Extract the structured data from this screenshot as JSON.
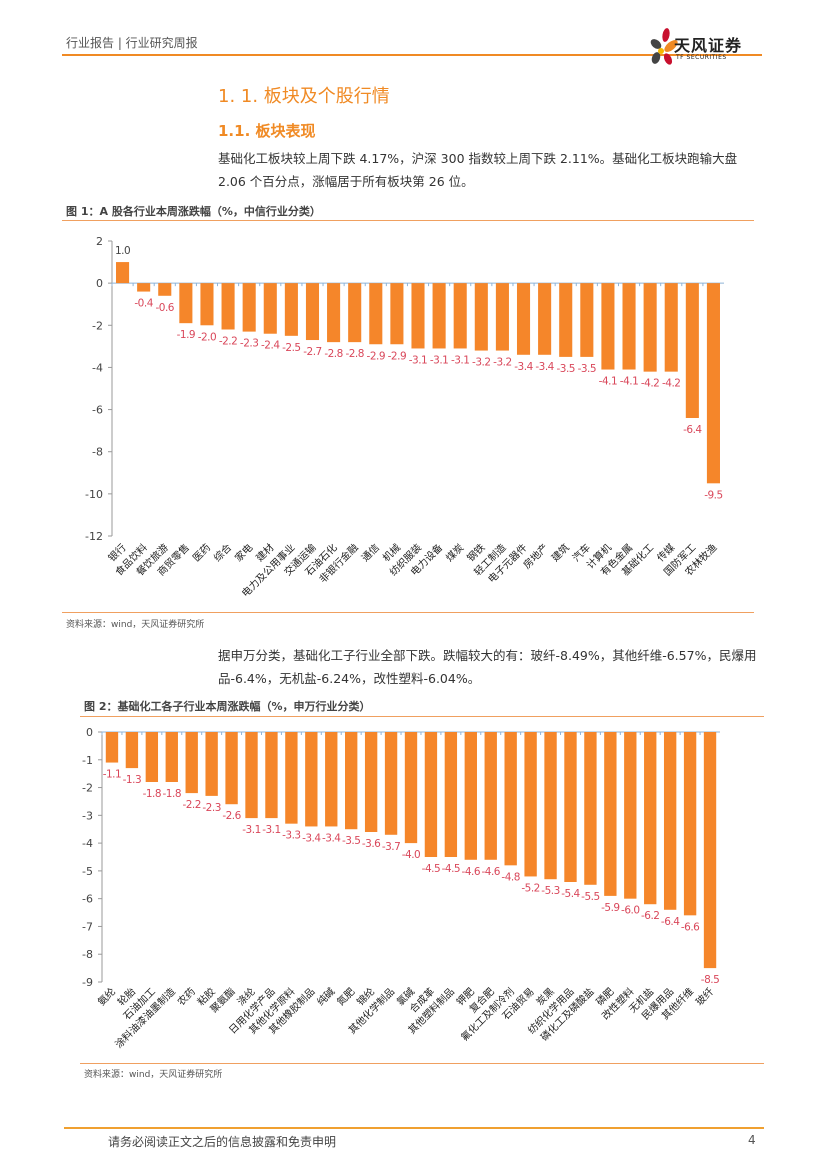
{
  "header": {
    "breadcrumb": "行业报告 | 行业研究周报",
    "logo_cn": "天风证券",
    "logo_en": "TF SECURITIES"
  },
  "section": {
    "h1": "1. 1.  板块及个股行情",
    "h2": "1.1. 板块表现",
    "para1": "基础化工板块较上周下跌 4.17%，沪深 300 指数较上周下跌 2.11%。基础化工板块跑输大盘 2.06 个百分点，涨幅居于所有板块第 26 位。",
    "para2": "据申万分类，基础化工子行业全部下跌。跌幅较大的有：玻纤-8.49%，其他纤维-6.57%，民爆用品-6.4%，无机盐-6.24%，改性塑料-6.04%。"
  },
  "figure1": {
    "title": "图 1：A 股各行业本周涨跌幅（%，中信行业分类）",
    "source": "资料来源：wind，天风证券研究所"
  },
  "figure2": {
    "title": "图 2：基础化工各子行业本周涨跌幅（%，申万行业分类）",
    "source": "资料来源：wind，天风证券研究所"
  },
  "footer": {
    "disclaimer": "请务必阅读正文之后的信息披露和免责申明",
    "page": "4"
  },
  "colors": {
    "accent": "#f08a24",
    "bar": "#f5862a",
    "label": "#d9475a"
  },
  "chart_data": [
    {
      "type": "bar",
      "title": "图 1：A 股各行业本周涨跌幅（%，中信行业分类）",
      "xlabel": "",
      "ylabel": "",
      "ylim": [
        -12,
        2
      ],
      "yticks": [
        2,
        0,
        -2,
        -4,
        -6,
        -8,
        -10,
        -12
      ],
      "grid": false,
      "categories": [
        "银行",
        "食品饮料",
        "餐饮旅游",
        "商贸零售",
        "医药",
        "综合",
        "家电",
        "建材",
        "电力及公用事业",
        "交通运输",
        "石油石化",
        "非银行金融",
        "通信",
        "机械",
        "纺织服装",
        "电力设备",
        "煤炭",
        "钢铁",
        "轻工制造",
        "电子元器件",
        "房地产",
        "建筑",
        "汽车",
        "计算机",
        "有色金属",
        "基础化工",
        "传媒",
        "国防军工",
        "农林牧渔"
      ],
      "values": [
        1.0,
        -0.4,
        -0.6,
        -1.9,
        -2.0,
        -2.2,
        -2.3,
        -2.4,
        -2.5,
        -2.7,
        -2.8,
        -2.8,
        -2.9,
        -2.9,
        -3.1,
        -3.1,
        -3.1,
        -3.2,
        -3.2,
        -3.4,
        -3.4,
        -3.5,
        -3.5,
        -4.1,
        -4.1,
        -4.2,
        -4.2,
        -6.4,
        -9.5
      ]
    },
    {
      "type": "bar",
      "title": "图 2：基础化工各子行业本周涨跌幅（%，申万行业分类）",
      "xlabel": "",
      "ylabel": "",
      "ylim": [
        -9,
        0
      ],
      "yticks": [
        0,
        -1,
        -2,
        -3,
        -4,
        -5,
        -6,
        -7,
        -8,
        -9
      ],
      "grid": false,
      "categories": [
        "氨纶",
        "轮胎",
        "石油加工",
        "涂料油漆油墨制造",
        "农药",
        "粘胶",
        "聚氨酯",
        "涤纶",
        "日用化学产品",
        "其他化学原料",
        "其他橡胶制品",
        "纯碱",
        "氮肥",
        "锦纶",
        "其他化学制品",
        "氯碱",
        "合成革",
        "其他塑料制品",
        "钾肥",
        "复合肥",
        "氟化工及制冷剂",
        "石油贸易",
        "炭黑",
        "纺织化学用品",
        "磷化工及磷酸盐",
        "磷肥",
        "改性塑料",
        "无机盐",
        "民爆用品",
        "其他纤维",
        "玻纤"
      ],
      "values": [
        -1.1,
        -1.3,
        -1.8,
        -1.8,
        -2.2,
        -2.3,
        -2.6,
        -3.1,
        -3.1,
        -3.3,
        -3.4,
        -3.4,
        -3.5,
        -3.6,
        -3.7,
        -4.0,
        -4.5,
        -4.5,
        -4.6,
        -4.6,
        -4.8,
        -5.2,
        -5.3,
        -5.4,
        -5.5,
        -5.9,
        -6.0,
        -6.2,
        -6.4,
        -6.6,
        -8.5
      ]
    }
  ]
}
